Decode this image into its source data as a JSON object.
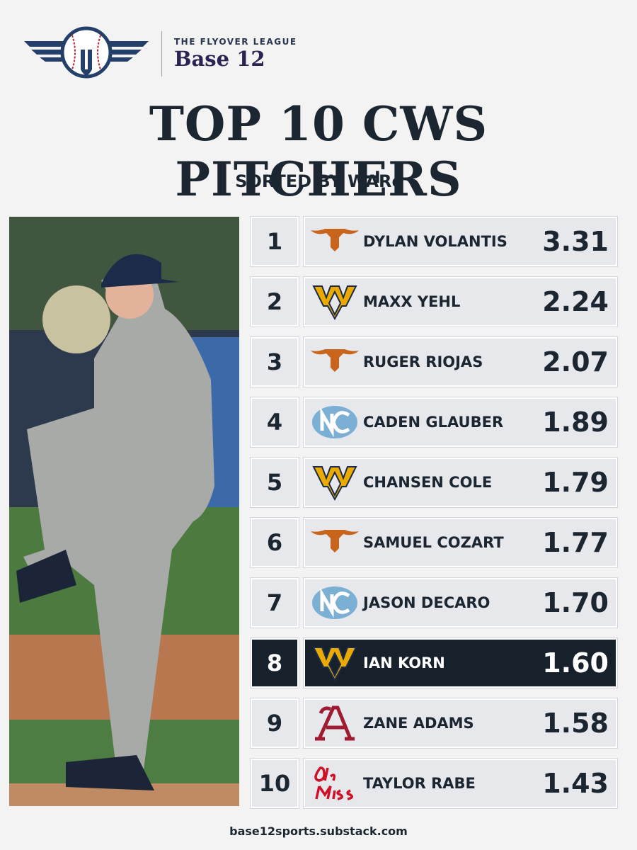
{
  "header": {
    "league": "THE FLYOVER LEAGUE",
    "brand": "Base 12"
  },
  "title": "TOP 10 CWS PITCHERS",
  "subtitle": "SORTED BY WARc",
  "table": {
    "rows": [
      [
        "1",
        "DYLAN VOLANTIS",
        "3.31"
      ],
      [
        "2",
        "MAXX YEHL",
        "2.24"
      ],
      [
        "3",
        "RUGER RIOJAS",
        "2.07"
      ],
      [
        "4",
        "CADEN GLAUBER",
        "1.89"
      ],
      [
        "5",
        "CHANSEN COLE",
        "1.79"
      ],
      [
        "6",
        "SAMUEL COZART",
        "1.77"
      ],
      [
        "7",
        "JASON DECARO",
        "1.70"
      ],
      [
        "8",
        "IAN KORN",
        "1.60"
      ],
      [
        "9",
        "ZANE ADAMS",
        "1.58"
      ],
      [
        "10",
        "TAYLOR RABE",
        "1.43"
      ]
    ]
  },
  "footer": "base12sports.substack.com"
}
